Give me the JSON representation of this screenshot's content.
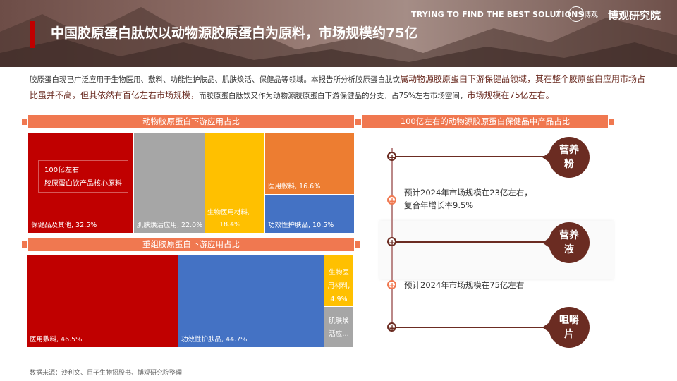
{
  "header": {
    "title": "中国胶原蛋白肽饮以动物源胶原蛋白为原料，市场规模约75亿",
    "tagline": "TRYING TO FIND THE BEST SOLUTIONS",
    "slash": "/",
    "logo_mark": "博观",
    "logo_text": "博观研究院"
  },
  "intro": {
    "part1": "胶原蛋白现已广泛应用于生物医用、敷料、功能性护肤品、肌肤焕活、保健品等领域。本报告所分析胶原蛋白肽饮",
    "part2": "属动物源胶原蛋白下游保健品领域，其在整个胶原蛋白应用市场占比虽并不高，但其依然有百亿左右市场规模，",
    "part3": "而胶原蛋白肽饮",
    "part4": "又作为动物源胶原蛋白下游保健品的分支，占75%左右市场空间，",
    "part5": "市场规模在75亿左右。"
  },
  "left_top": {
    "title": "动物胶原蛋白下游应用占比",
    "note_line1": "100亿左右",
    "note_line2": "胶原蛋白饮产品核心原料",
    "cells": [
      {
        "label": "保健品及其他, 32.5%",
        "value": 32.5,
        "color": "#c00000"
      },
      {
        "label": "肌肤焕活应用, 22.0%",
        "value": 22.0,
        "color": "#a6a6a6"
      },
      {
        "label_a": "生物医用材料,",
        "label_b": "18.4%",
        "value": 18.4,
        "color": "#ffc000"
      },
      {
        "label": "医用敷料, 16.6%",
        "value": 16.6,
        "color": "#ed7d31"
      },
      {
        "label": "功效性护肤品, 10.5%",
        "value": 10.5,
        "color": "#4472c4"
      }
    ]
  },
  "left_bottom": {
    "title": "重组胶原蛋白下游应用占比",
    "cells": [
      {
        "label": "医用敷料, 46.5%",
        "value": 46.5,
        "color": "#c00000"
      },
      {
        "label": "功效性护肤品, 44.7%",
        "value": 44.7,
        "color": "#4472c4"
      },
      {
        "label_a": "生物医",
        "label_b": "用材料,",
        "label_c": "4.9%",
        "value": 4.9,
        "color": "#ffc000"
      },
      {
        "label_a": "肌肤焕",
        "label_b": "活应…",
        "value": 3.9,
        "color": "#a6a6a6"
      }
    ]
  },
  "right": {
    "title": "100亿左右的动物源胶原蛋白保健品中产品占比",
    "items": [
      {
        "badge_a": "营养",
        "badge_b": "粉",
        "desc_a": "预计2024年市场规模在23亿左右，",
        "desc_b": "复合年增长率9.5%"
      },
      {
        "badge_a": "营养",
        "badge_b": "液",
        "desc_a": "预计2024年市场规模在75亿左右"
      },
      {
        "badge_a": "咀嚼",
        "badge_b": "片"
      }
    ],
    "plus_symbol": "+"
  },
  "source": "数据来源：沙利文、巨子生物招股书、博观研究院整理"
}
